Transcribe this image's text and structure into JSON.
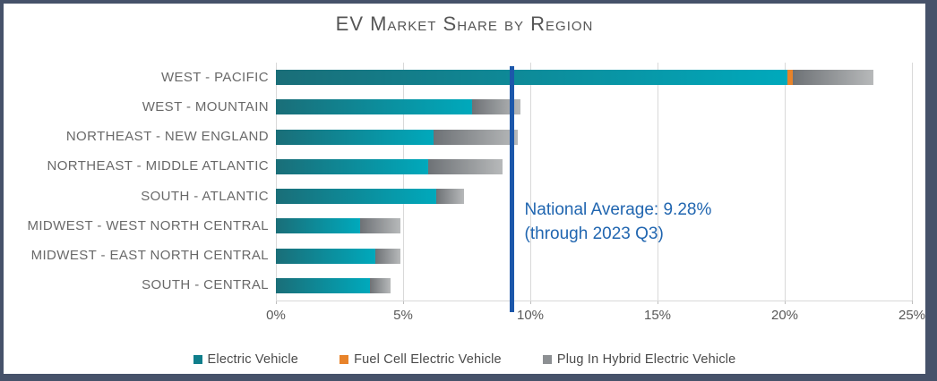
{
  "title": "EV Market Share by Region",
  "chart_data": {
    "type": "bar",
    "orientation": "horizontal",
    "stacked": true,
    "title": "EV Market Share by Region",
    "categories": [
      "WEST - PACIFIC",
      "WEST - MOUNTAIN",
      "NORTHEAST - NEW ENGLAND",
      "NORTHEAST - MIDDLE ATLANTIC",
      "SOUTH - ATLANTIC",
      "MIDWEST - WEST NORTH CENTRAL",
      "MIDWEST - EAST NORTH CENTRAL",
      "SOUTH - CENTRAL"
    ],
    "series": [
      {
        "name": "Electric Vehicle",
        "values": [
          20.1,
          7.7,
          6.2,
          6.0,
          6.3,
          3.3,
          3.9,
          3.7
        ]
      },
      {
        "name": "Fuel Cell Electric Vehicle",
        "values": [
          0.2,
          0,
          0,
          0,
          0,
          0,
          0,
          0
        ]
      },
      {
        "name": "Plug In Hybrid Electric Vehicle",
        "values": [
          3.2,
          1.9,
          3.3,
          2.9,
          1.1,
          1.6,
          1.0,
          0.8
        ]
      }
    ],
    "x_axis": {
      "min": 0,
      "max": 25,
      "tick_step": 5,
      "tick_labels": [
        "0%",
        "5%",
        "10%",
        "15%",
        "20%",
        "25%"
      ]
    },
    "grid": true,
    "legend_position": "bottom",
    "reference_line": {
      "value": 9.28,
      "label_line1": "National Average: 9.28%",
      "label_line2": "(through 2023 Q3)"
    }
  },
  "legend": {
    "items": [
      {
        "label": "Electric Vehicle",
        "color": "#0f7e8b"
      },
      {
        "label": "Fuel Cell Electric Vehicle",
        "color": "#e8832a"
      },
      {
        "label": "Plug In Hybrid Electric Vehicle",
        "color": "#8d9093"
      }
    ]
  },
  "colors": {
    "ev_gradient_start": "#1a6e78",
    "ev_gradient_end": "#00a9bc",
    "fcev": "#e8832a",
    "phev_gradient_start": "#6e7276",
    "phev_gradient_end": "#b7b9ba",
    "avg_line": "#1c57aa",
    "annotation_text": "#2166b0",
    "frame_border": "#46526a",
    "gridline": "#d9d9d9",
    "title_text": "#565656",
    "category_text": "#696969",
    "axis_text": "#595959"
  }
}
